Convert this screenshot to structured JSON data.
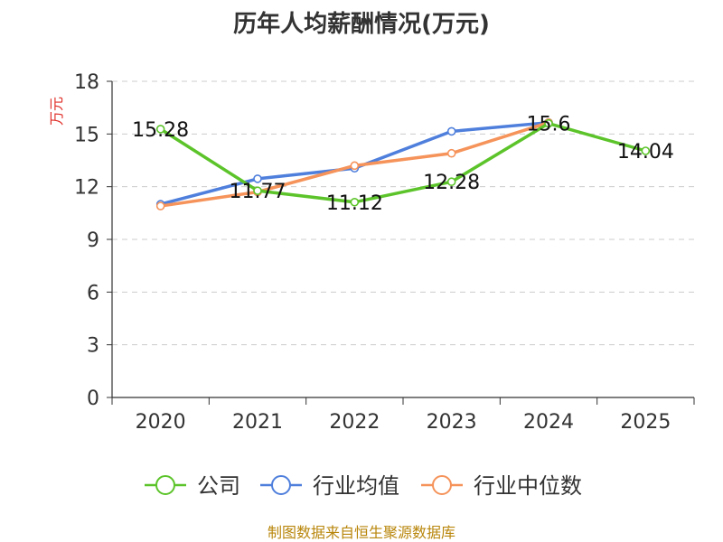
{
  "chart_data": {
    "type": "line",
    "title": "历年人均薪酬情况(万元)",
    "ylabel": "万元",
    "xlabel": "",
    "categories": [
      "2020",
      "2021",
      "2022",
      "2023",
      "2024",
      "2025"
    ],
    "ylim": [
      0,
      18
    ],
    "yticks": [
      0,
      3,
      6,
      9,
      12,
      15,
      18
    ],
    "grid": true,
    "legend_position": "bottom",
    "series": [
      {
        "name": "公司",
        "color": "#5cc42a",
        "values": [
          15.28,
          11.77,
          11.12,
          12.28,
          15.6,
          14.04
        ],
        "labels": [
          "15.28",
          "11.77",
          "11.12",
          "12.28",
          "15.6",
          "14.04"
        ]
      },
      {
        "name": "行业均值",
        "color": "#4f7fdc",
        "values": [
          11.0,
          12.45,
          13.05,
          15.15,
          15.65,
          null
        ]
      },
      {
        "name": "行业中位数",
        "color": "#f5935a",
        "values": [
          10.9,
          11.7,
          13.2,
          13.9,
          15.65,
          null
        ]
      }
    ]
  },
  "source_note": "制图数据来自恒生聚源数据库"
}
